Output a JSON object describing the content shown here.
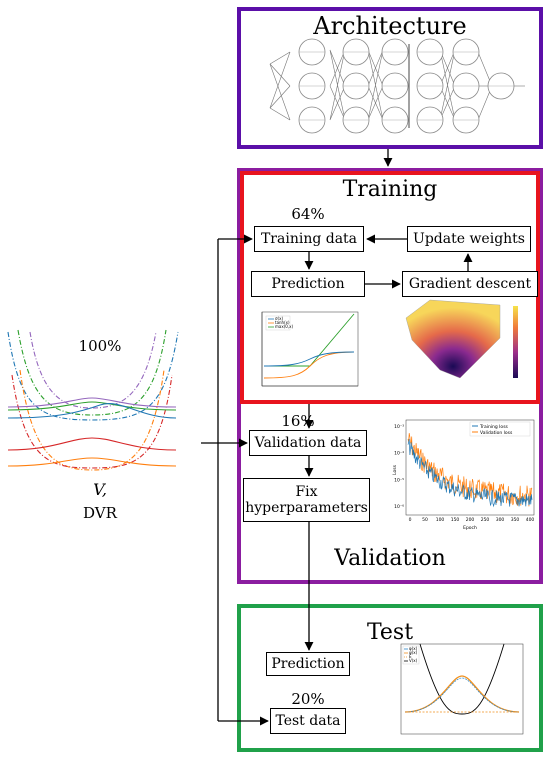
{
  "colors": {
    "architecture": "#5b0fa8",
    "training": "#e8141e",
    "training_outer": "#8b1da0",
    "validation": "#8e1f8e",
    "test": "#20a14a"
  },
  "architecture": {
    "title": "Architecture"
  },
  "training": {
    "title": "Training",
    "percent": "64%",
    "training_data": "Training data",
    "update_weights": "Update weights",
    "prediction": "Prediction",
    "gradient_descent": "Gradient descent",
    "activation_legend": [
      "σ(x)",
      "tanh(x)",
      "max(0,x)"
    ]
  },
  "validation": {
    "title": "Validation",
    "percent": "16%",
    "validation_data": "Validation data",
    "fix_line1": "Fix",
    "fix_line2": "hyperparameters",
    "loss_legend": [
      "Training loss",
      "Validation loss"
    ],
    "loss_xlabel": "Epoch",
    "loss_ylabel": "Loss",
    "loss_xticks": [
      "0",
      "50",
      "100",
      "150",
      "200",
      "250",
      "300",
      "350",
      "400"
    ],
    "loss_yticks": [
      "10⁻³",
      "10⁻⁴",
      "10⁻⁵",
      "10⁻⁶"
    ]
  },
  "test": {
    "title": "Test",
    "prediction": "Prediction",
    "percent": "20%",
    "test_data": "Test data",
    "legend": [
      "φ(x)",
      "ψ(x)",
      "E",
      "V(x)"
    ]
  },
  "potential": {
    "percent": "100%",
    "v_label": "V,",
    "dvr_label": "DVR"
  }
}
